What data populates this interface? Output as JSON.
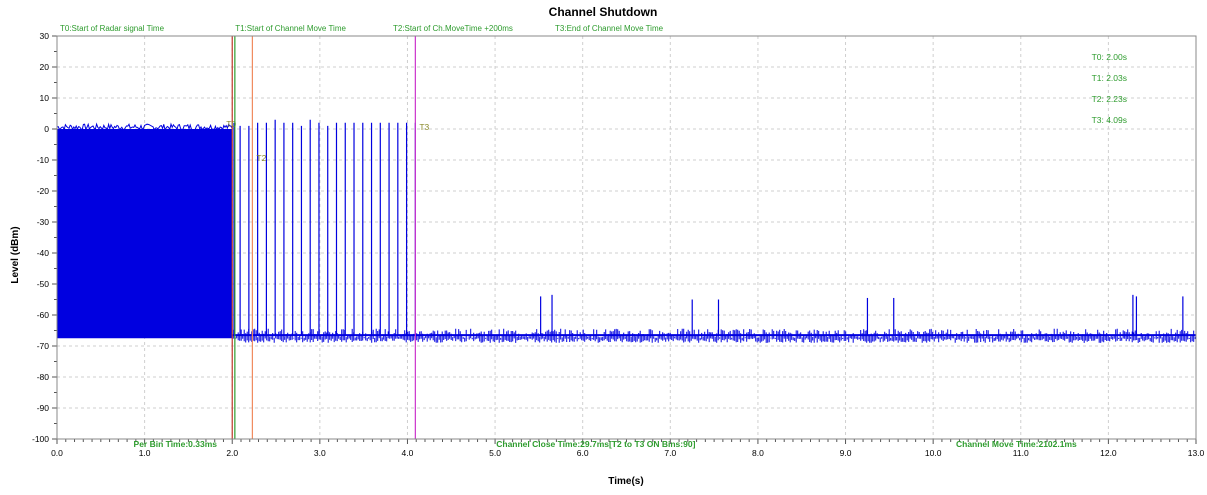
{
  "chart_data": {
    "type": "line",
    "title": "Channel Shutdown",
    "xlabel": "Time(s)",
    "ylabel": "Level (dBm)",
    "xlim": [
      0,
      13
    ],
    "ylim": [
      -100,
      30
    ],
    "grid": true,
    "x_ticks": [
      "0.0",
      "1.0",
      "2.0",
      "3.0",
      "4.0",
      "5.0",
      "6.0",
      "7.0",
      "8.0",
      "9.0",
      "10.0",
      "11.0",
      "12.0",
      "13.0"
    ],
    "y_ticks": [
      "30",
      "20",
      "10",
      "0",
      "-10",
      "-20",
      "-30",
      "-40",
      "-50",
      "-60",
      "-70",
      "-80",
      "-90",
      "-100"
    ],
    "top_labels": [
      {
        "text": "T0:Start of Radar signal Time",
        "x": 0.0
      },
      {
        "text": "T1:Start of Channel Move Time",
        "x": 2.0
      },
      {
        "text": "T2:Start of Ch.MoveTime +200ms",
        "x": 3.8
      },
      {
        "text": "T3:End of Channel Move Time",
        "x": 5.65
      }
    ],
    "markers": [
      {
        "name": "T0",
        "x": 2.0,
        "color": "#c0392b",
        "label_y": 2
      },
      {
        "name": "T1",
        "x": 2.03,
        "color": "#2e9c2e",
        "label_y": null
      },
      {
        "name": "T2",
        "x": 2.23,
        "color": "#f08a5d",
        "label_y": -9
      },
      {
        "name": "T3",
        "x": 4.09,
        "color": "#cc33cc",
        "label_y": 1
      }
    ],
    "time_readouts": [
      "T0: 2.00s",
      "T1: 2.03s",
      "T2: 2.23s",
      "T3: 4.09s"
    ],
    "bottom_labels": [
      {
        "text": "Per Bin Time:0.33ms",
        "x": 1.35
      },
      {
        "text": "Channel Close Time:29.7ms[T2 to T3 ON Bins:90]",
        "x": 6.15
      },
      {
        "text": "Channel Move Time:2102.1ms",
        "x": 10.95
      }
    ],
    "series": [
      {
        "color": "#0000e0",
        "radar_block": {
          "x_start": 0.0,
          "x_end": 2.0,
          "y_top": 0,
          "y_bottom": -67.5
        },
        "noise_floor": {
          "x_start": 2.0,
          "x_end": 13.0,
          "y": -66.5,
          "spread": 1.5
        },
        "spikes_x": [
          2.02,
          2.09,
          2.19,
          2.29,
          2.39,
          2.49,
          2.59,
          2.69,
          2.79,
          2.89,
          2.99,
          3.09,
          3.19,
          3.29,
          3.39,
          3.49,
          3.59,
          3.69,
          3.79,
          3.89,
          3.99,
          4.09
        ],
        "spikes_y": [
          2,
          1,
          1,
          2,
          2,
          3,
          2,
          2,
          1,
          3,
          2,
          1,
          2,
          2,
          2,
          2,
          2,
          2,
          2,
          2,
          2,
          2
        ],
        "late_spikes": [
          {
            "x": 5.52,
            "y": -54
          },
          {
            "x": 5.65,
            "y": -53.5
          },
          {
            "x": 7.25,
            "y": -55
          },
          {
            "x": 7.55,
            "y": -55
          },
          {
            "x": 9.25,
            "y": -54.5
          },
          {
            "x": 9.55,
            "y": -54.5
          },
          {
            "x": 12.28,
            "y": -53.5
          },
          {
            "x": 12.32,
            "y": -54
          },
          {
            "x": 12.85,
            "y": -54
          }
        ]
      }
    ]
  }
}
